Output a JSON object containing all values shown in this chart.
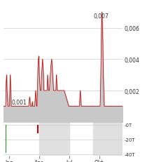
{
  "x_ticks_pos": [
    13,
    78,
    143,
    208
  ],
  "x_tick_labels": [
    "Jan",
    "Apr",
    "Jul",
    "Okt"
  ],
  "y_ticks_price": [
    0.002,
    0.004,
    0.006
  ],
  "y_tick_labels_price": [
    "0,002",
    "0,004",
    "0,006"
  ],
  "ylim_price": [
    0.0,
    0.0075
  ],
  "ylim_volume": [
    -42000,
    4000
  ],
  "y_ticks_volume": [
    -40000,
    -20000,
    0
  ],
  "y_tick_labels_volume": [
    "-40T",
    "-20T",
    "-0T"
  ],
  "area_color": "#c8c8c8",
  "line_color": "#cc0000",
  "bg_color": "#ffffff",
  "band_color": "#e0e0e0",
  "volume_green": "#228B22",
  "volume_red": "#cc0000",
  "grid_color": "#cccccc",
  "text_color": "#333333",
  "label_001": "0,001",
  "label_007": "0,007",
  "num_points": 260
}
